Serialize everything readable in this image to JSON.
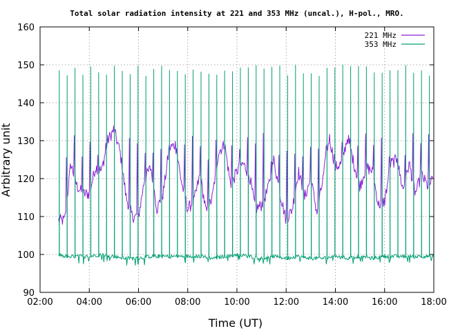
{
  "chart_data": {
    "type": "line",
    "title": "Total solar radiation intensity at 221 and 353 MHz (uncal.), H-pol., MRO.",
    "xlabel": "Time (UT)",
    "ylabel": "Arbitrary unit",
    "xlim": [
      "02:00",
      "18:00"
    ],
    "ylim": [
      90,
      160
    ],
    "x_ticks": [
      "02:00",
      "04:00",
      "06:00",
      "08:00",
      "10:00",
      "12:00",
      "14:00",
      "16:00",
      "18:00"
    ],
    "y_ticks": [
      90,
      100,
      110,
      120,
      130,
      140,
      150,
      160
    ],
    "grid": true,
    "legend_position": "top-right",
    "data_start": "02:45",
    "data_end": "18:00",
    "series": [
      {
        "name": "221 MHz",
        "color": "#8b1ed6",
        "x": [
          "02:45",
          "03:00",
          "03:15",
          "03:30",
          "03:45",
          "04:00",
          "04:15",
          "04:30",
          "04:45",
          "05:00",
          "05:15",
          "05:30",
          "05:45",
          "06:00",
          "06:15",
          "06:30",
          "06:45",
          "07:00",
          "07:15",
          "07:30",
          "07:45",
          "08:00",
          "08:15",
          "08:30",
          "08:45",
          "09:00",
          "09:15",
          "09:30",
          "09:45",
          "10:00",
          "10:15",
          "10:30",
          "10:45",
          "11:00",
          "11:15",
          "11:30",
          "11:45",
          "12:00",
          "12:15",
          "12:30",
          "12:45",
          "13:00",
          "13:15",
          "13:30",
          "13:45",
          "14:00",
          "14:15",
          "14:30",
          "14:45",
          "15:00",
          "15:15",
          "15:30",
          "15:45",
          "16:00",
          "16:15",
          "16:30",
          "16:45",
          "17:00",
          "17:15",
          "17:30",
          "17:45",
          "18:00"
        ],
        "values": [
          109,
          109,
          124,
          118,
          116,
          116,
          123,
          122,
          130,
          133,
          127,
          115,
          110,
          110,
          120,
          123,
          112,
          116,
          128,
          129,
          119,
          112,
          114,
          121,
          111,
          115,
          127,
          129,
          118,
          122,
          124,
          121,
          112,
          113,
          117,
          125,
          116,
          109,
          112,
          122,
          115,
          120,
          111,
          120,
          131,
          123,
          124,
          131,
          124,
          118,
          123,
          122,
          113,
          114,
          124,
          125,
          117,
          124,
          116,
          121,
          118,
          120
        ]
      },
      {
        "name": "353 MHz",
        "color": "#009e73",
        "x": [
          "02:45",
          "03:00",
          "03:30",
          "04:00",
          "04:30",
          "05:00",
          "05:30",
          "06:00",
          "06:30",
          "07:00",
          "07:30",
          "08:00",
          "08:30",
          "09:00",
          "09:30",
          "10:00",
          "10:30",
          "11:00",
          "11:30",
          "12:00",
          "12:30",
          "13:00",
          "13:30",
          "14:00",
          "14:30",
          "15:00",
          "15:30",
          "16:00",
          "16:30",
          "17:00",
          "17:30",
          "18:00"
        ],
        "values": [
          100,
          99.5,
          99.5,
          99.5,
          100,
          99.5,
          99,
          99,
          99.5,
          99.5,
          99.5,
          99.5,
          99.5,
          99,
          99.5,
          100,
          99.5,
          99,
          99.5,
          99,
          99.5,
          99,
          99,
          99.5,
          99,
          99.5,
          99,
          99.5,
          99.5,
          99.5,
          99.5,
          99.5
        ],
        "spike_peak": 150
      }
    ]
  }
}
